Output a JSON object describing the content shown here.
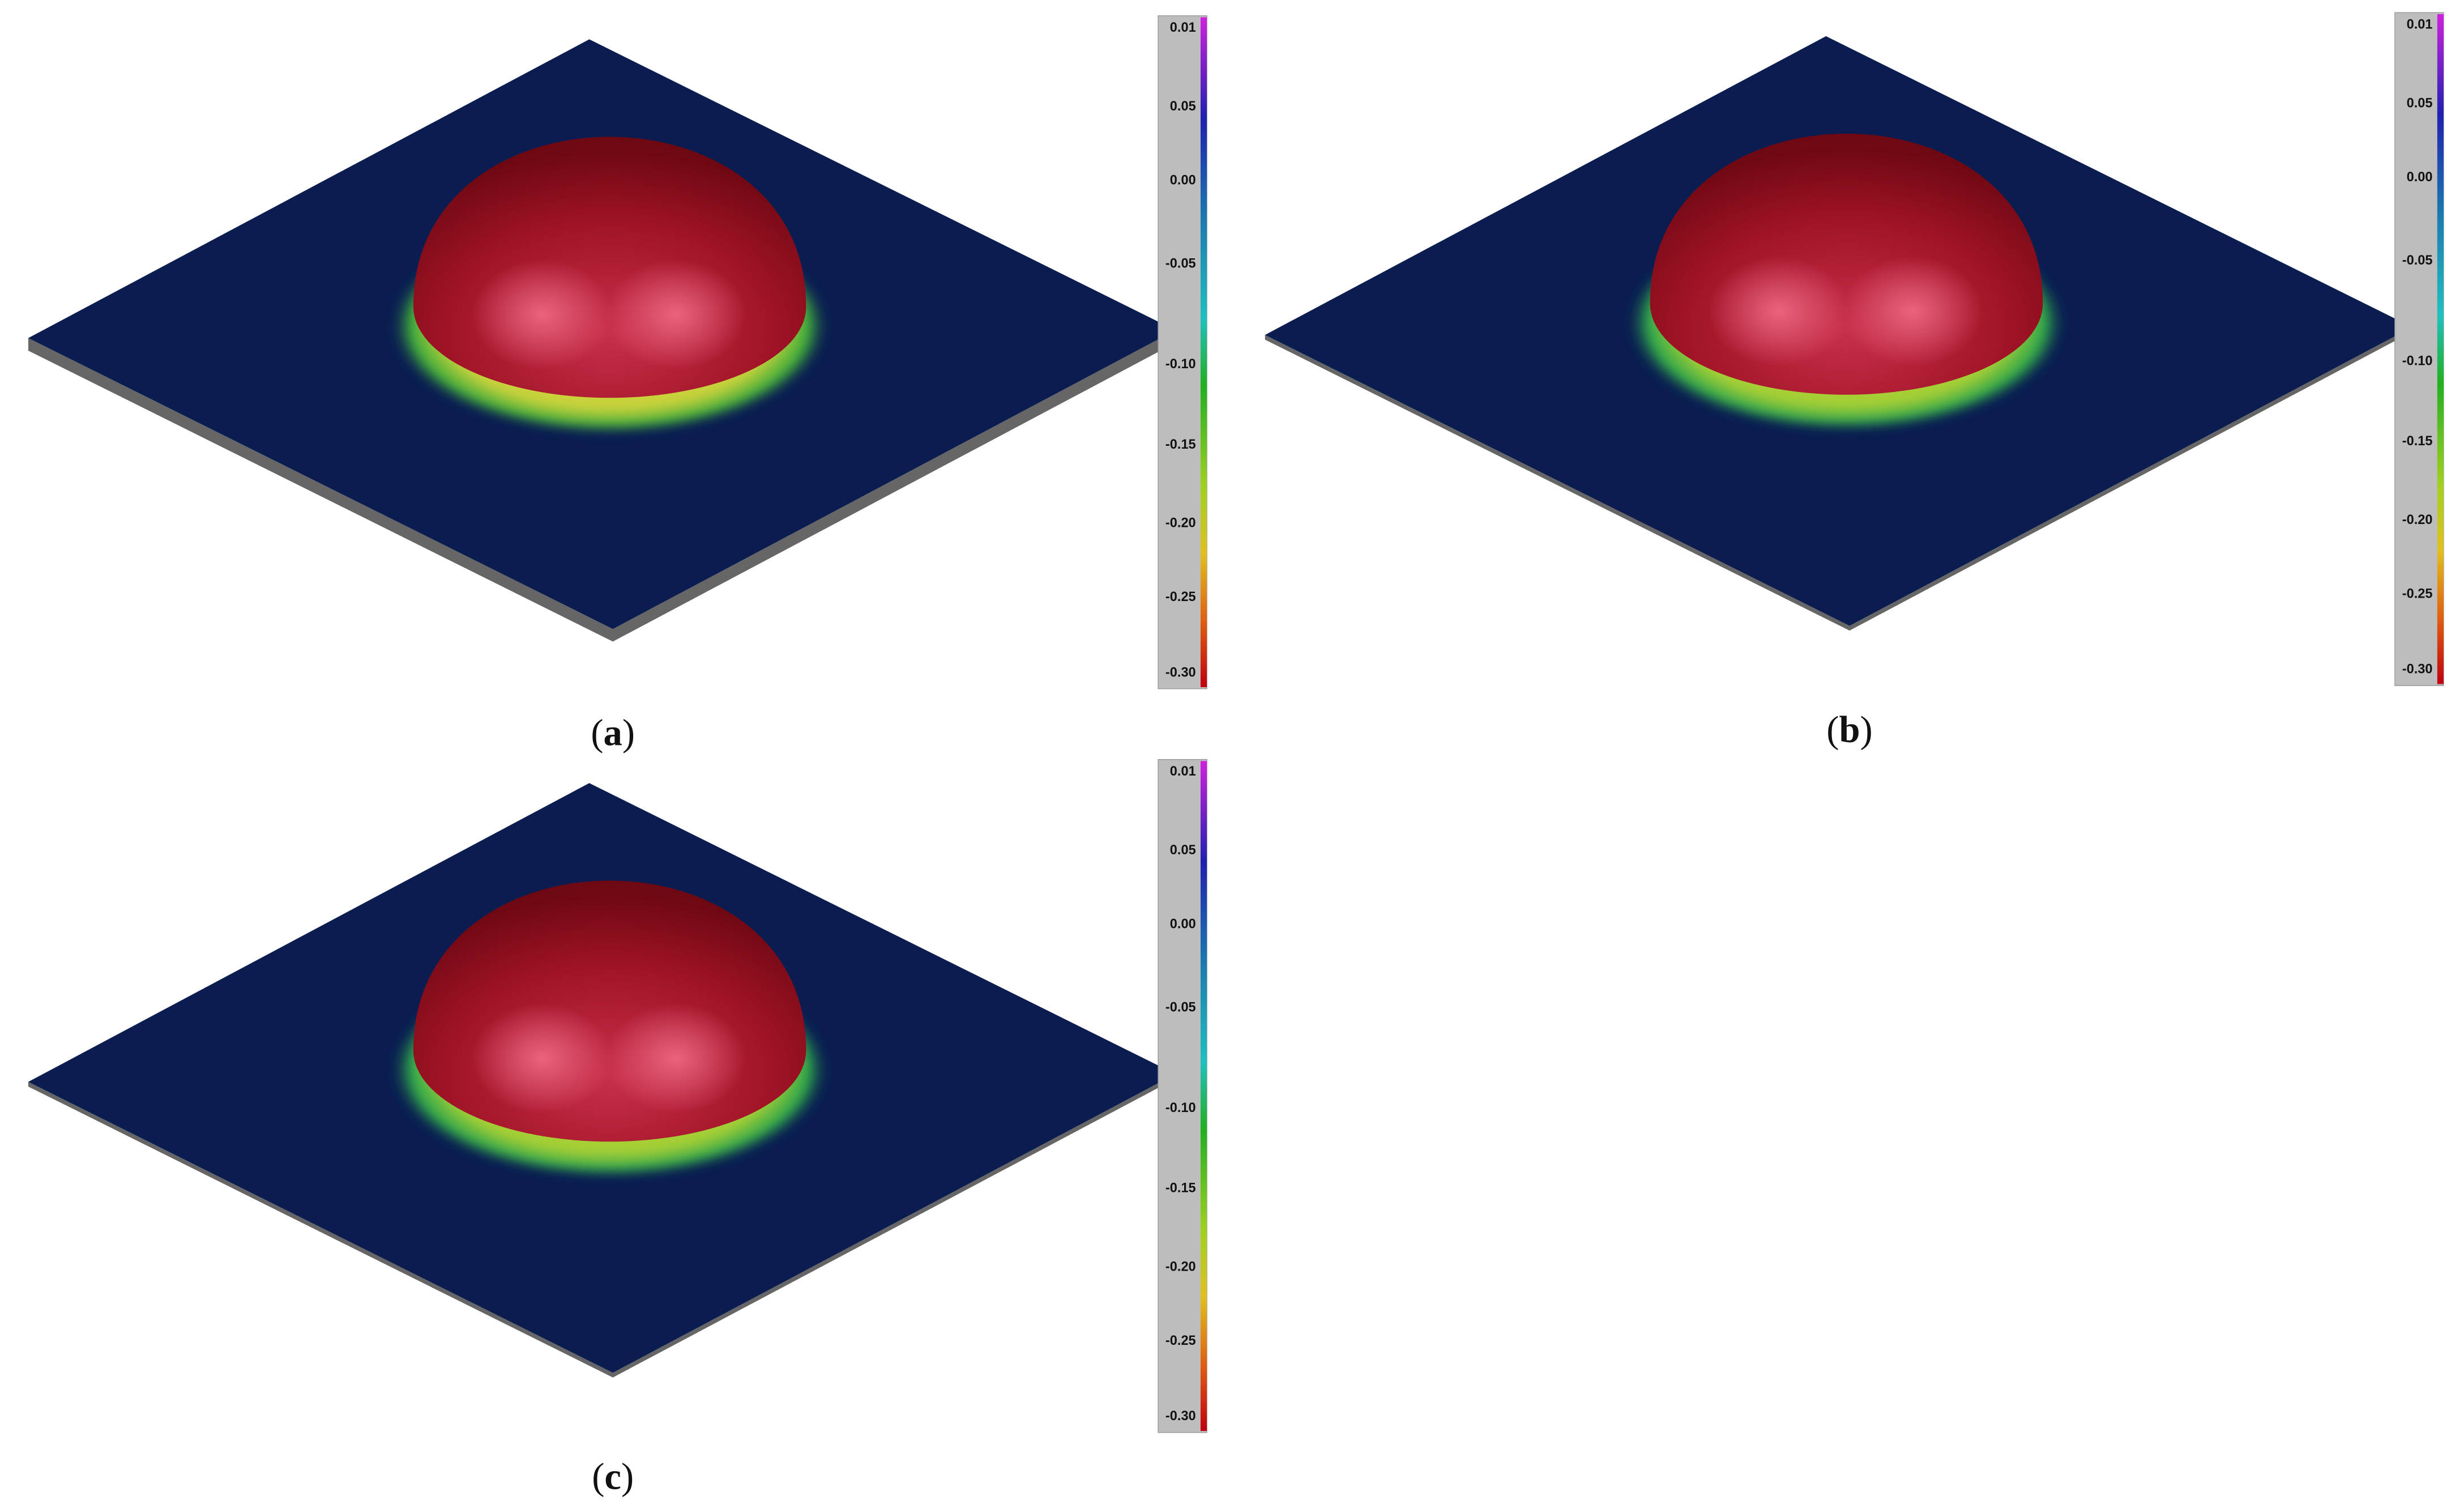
{
  "panels": [
    {
      "caption": {
        "open": "(",
        "letter": "a",
        "close": ")"
      },
      "colorbar": [
        "0.01",
        "0.05",
        "0.00",
        "-0.05",
        "-0.10",
        "-0.15",
        "-0.20",
        "-0.25",
        "-0.30"
      ]
    },
    {
      "caption": {
        "open": "(",
        "letter": "b",
        "close": ")"
      },
      "colorbar": [
        "0.01",
        "0.05",
        "0.00",
        "-0.05",
        "-0.10",
        "-0.15",
        "-0.20",
        "-0.25",
        "-0.30"
      ]
    },
    {
      "caption": {
        "open": "(",
        "letter": "c",
        "close": ")"
      },
      "colorbar": [
        "0.01",
        "0.05",
        "0.00",
        "-0.05",
        "-0.10",
        "-0.15",
        "-0.20",
        "-0.25",
        "-0.30"
      ]
    }
  ]
}
